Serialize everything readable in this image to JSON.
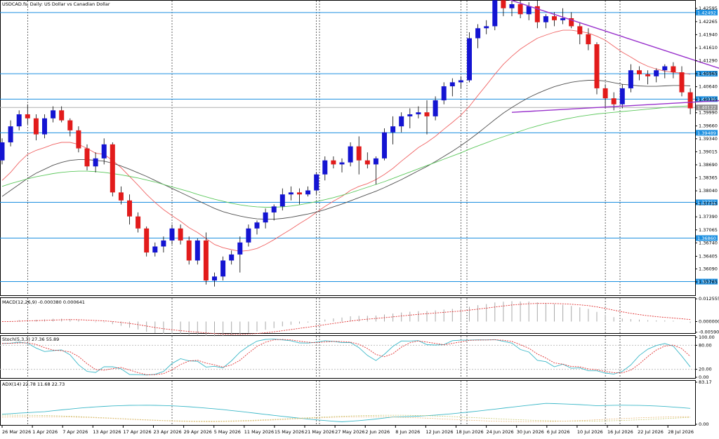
{
  "window": {
    "title": "USDCAD.fs, Daily:  US Dollar vs Canadian Dollar"
  },
  "colors": {
    "bull": "#1414d2",
    "bear": "#e21b1b",
    "level": "#1c8fe0",
    "trend": "#9932cc",
    "ma_fast": "#f06464",
    "ma_mid": "#505050",
    "ma_slow": "#5cc85c",
    "macd_hist": "#a9a9a9",
    "macd_signal": "#e03030",
    "stoch_main": "#3cb8c8",
    "stoch_signal": "#e03030",
    "adx_main": "#3cb8c8",
    "adx_plus": "#c8c870",
    "adx_minus": "#e8b87a",
    "grid": "#000000"
  },
  "chart_data": [
    {
      "type": "candlestick",
      "title": "USDCAD.fs, Daily:  US Dollar vs Canadian Dollar",
      "ylim": [
        1.3545,
        1.4277
      ],
      "price_ticks": [
        "1.42595",
        "1.42265",
        "1.41940",
        "1.41610",
        "1.41290",
        "1.40965",
        "1.40640",
        "1.40315",
        "1.39990",
        "1.39660",
        "1.39340",
        "1.39015",
        "1.38690",
        "1.38365",
        "1.38040",
        "1.37715",
        "1.37390",
        "1.37065",
        "1.36740",
        "1.36405",
        "1.36090",
        "1.35765"
      ],
      "x_labels": [
        "26 Mar 2026",
        "1 Apr 2026",
        "7 Apr 2026",
        "13 Apr 2026",
        "17 Apr 2026",
        "23 Apr 2026",
        "29 Apr 2026",
        "5 May 2026",
        "11 May 2026",
        "15 May 2026",
        "21 May 2026",
        "27 May 2026",
        "2 Jun 2026",
        "8 Jun 2026",
        "12 Jun 2026",
        "18 Jun 2026",
        "24 Jun 2026",
        "30 Jun 2026",
        "6 Jul 2026",
        "10 Jul 2026",
        "16 Jul 2026",
        "22 Jul 2026",
        "28 Jul 2026"
      ],
      "levels": [
        {
          "price": 1.42492,
          "label": "1.42492"
        },
        {
          "price": 1.40965,
          "label": "1.40965"
        },
        {
          "price": 1.4033,
          "label": "1.40330"
        },
        {
          "price": 1.39489,
          "label": "1.39489"
        },
        {
          "price": 1.37752,
          "label": "1.37752"
        },
        {
          "price": 1.3686,
          "label": "1.36860"
        },
        {
          "price": 1.35773,
          "label": "1.35773"
        }
      ],
      "current_price": {
        "price": 1.40122,
        "label": "1.40122"
      },
      "candles": [
        [
          1.388,
          1.3935,
          1.387,
          1.3925
        ],
        [
          1.3925,
          1.398,
          1.3915,
          1.3965
        ],
        [
          1.3965,
          1.4005,
          1.3955,
          1.3995
        ],
        [
          1.3995,
          1.402,
          1.397,
          1.3985
        ],
        [
          1.3985,
          1.3995,
          1.393,
          1.3945
        ],
        [
          1.3945,
          1.3995,
          1.3935,
          1.3985
        ],
        [
          1.3985,
          1.4015,
          1.3975,
          1.4005
        ],
        [
          1.4005,
          1.4015,
          1.3975,
          1.398
        ],
        [
          1.398,
          1.3985,
          1.394,
          1.3955
        ],
        [
          1.3955,
          1.3965,
          1.39,
          1.391
        ],
        [
          1.391,
          1.392,
          1.3855,
          1.3865
        ],
        [
          1.3865,
          1.39,
          1.385,
          1.3885
        ],
        [
          1.3885,
          1.3935,
          1.387,
          1.392
        ],
        [
          1.392,
          1.3925,
          1.379,
          1.38
        ],
        [
          1.38,
          1.3815,
          1.377,
          1.378
        ],
        [
          1.378,
          1.3795,
          1.372,
          1.374
        ],
        [
          1.374,
          1.375,
          1.37,
          1.371
        ],
        [
          1.371,
          1.3715,
          1.364,
          1.365
        ],
        [
          1.365,
          1.3675,
          1.364,
          1.3665
        ],
        [
          1.3665,
          1.369,
          1.365,
          1.368
        ],
        [
          1.368,
          1.372,
          1.367,
          1.371
        ],
        [
          1.371,
          1.372,
          1.367,
          1.368
        ],
        [
          1.368,
          1.369,
          1.362,
          1.363
        ],
        [
          1.363,
          1.3685,
          1.362,
          1.368
        ],
        [
          1.368,
          1.37,
          1.357,
          1.358
        ],
        [
          1.358,
          1.36,
          1.3565,
          1.359
        ],
        [
          1.359,
          1.364,
          1.358,
          1.363
        ],
        [
          1.363,
          1.3655,
          1.362,
          1.3645
        ],
        [
          1.3645,
          1.369,
          1.36,
          1.3675
        ],
        [
          1.3675,
          1.372,
          1.3665,
          1.371
        ],
        [
          1.371,
          1.373,
          1.3695,
          1.3725
        ],
        [
          1.3725,
          1.376,
          1.371,
          1.375
        ],
        [
          1.375,
          1.377,
          1.373,
          1.3765
        ],
        [
          1.3765,
          1.381,
          1.3755,
          1.3795
        ],
        [
          1.3795,
          1.3815,
          1.378,
          1.38
        ],
        [
          1.38,
          1.381,
          1.377,
          1.3795
        ],
        [
          1.3795,
          1.3815,
          1.379,
          1.3805
        ],
        [
          1.3805,
          1.385,
          1.3795,
          1.3845
        ],
        [
          1.3845,
          1.389,
          1.383,
          1.388
        ],
        [
          1.388,
          1.389,
          1.386,
          1.387
        ],
        [
          1.387,
          1.3885,
          1.385,
          1.3875
        ],
        [
          1.3875,
          1.3925,
          1.3865,
          1.3915
        ],
        [
          1.3915,
          1.394,
          1.3845,
          1.388
        ],
        [
          1.388,
          1.39,
          1.386,
          1.387
        ],
        [
          1.387,
          1.389,
          1.382,
          1.3885
        ],
        [
          1.3885,
          1.396,
          1.388,
          1.395
        ],
        [
          1.395,
          1.399,
          1.392,
          1.3965
        ],
        [
          1.3965,
          1.4,
          1.395,
          1.399
        ],
        [
          1.399,
          1.401,
          1.396,
          1.3995
        ],
        [
          1.3995,
          1.4015,
          1.3985,
          1.4
        ],
        [
          1.4,
          1.403,
          1.3945,
          1.399
        ],
        [
          1.399,
          1.404,
          1.398,
          1.403
        ],
        [
          1.403,
          1.4075,
          1.402,
          1.4065
        ],
        [
          1.4065,
          1.4085,
          1.404,
          1.4075
        ],
        [
          1.4075,
          1.409,
          1.406,
          1.408
        ],
        [
          1.408,
          1.42,
          1.4075,
          1.4185
        ],
        [
          1.4185,
          1.422,
          1.416,
          1.421
        ],
        [
          1.421,
          1.423,
          1.4195,
          1.4215
        ],
        [
          1.4215,
          1.429,
          1.4205,
          1.428
        ],
        [
          1.428,
          1.43,
          1.424,
          1.426
        ],
        [
          1.426,
          1.4285,
          1.424,
          1.427
        ],
        [
          1.427,
          1.429,
          1.4235,
          1.4245
        ],
        [
          1.4245,
          1.4275,
          1.423,
          1.4265
        ],
        [
          1.4265,
          1.428,
          1.421,
          1.4225
        ],
        [
          1.4225,
          1.4245,
          1.421,
          1.424
        ],
        [
          1.424,
          1.425,
          1.4215,
          1.423
        ],
        [
          1.423,
          1.426,
          1.422,
          1.4235
        ],
        [
          1.4235,
          1.425,
          1.421,
          1.4215
        ],
        [
          1.4215,
          1.4225,
          1.417,
          1.4195
        ],
        [
          1.4195,
          1.421,
          1.4155,
          1.417
        ],
        [
          1.417,
          1.4175,
          1.4045,
          1.406
        ],
        [
          1.406,
          1.407,
          1.401,
          1.4035
        ],
        [
          1.4035,
          1.405,
          1.4005,
          1.402
        ],
        [
          1.402,
          1.407,
          1.401,
          1.406
        ],
        [
          1.406,
          1.412,
          1.405,
          1.4105
        ],
        [
          1.4105,
          1.4115,
          1.408,
          1.4095
        ],
        [
          1.4095,
          1.4105,
          1.407,
          1.409
        ],
        [
          1.409,
          1.411,
          1.4075,
          1.4105
        ],
        [
          1.4105,
          1.412,
          1.4085,
          1.4115
        ],
        [
          1.4115,
          1.4125,
          1.4085,
          1.41
        ],
        [
          1.41,
          1.4115,
          1.404,
          1.405
        ],
        [
          1.405,
          1.406,
          1.3995,
          1.401
        ]
      ],
      "ma_fast": [
        1.383,
        1.385,
        1.3875,
        1.3895,
        1.3905,
        1.3912,
        1.392,
        1.3925,
        1.3925,
        1.392,
        1.391,
        1.3898,
        1.3895,
        1.388,
        1.3862,
        1.384,
        1.3818,
        1.3795,
        1.3775,
        1.3757,
        1.3742,
        1.3728,
        1.3712,
        1.37,
        1.3685,
        1.367,
        1.3662,
        1.3657,
        1.3653,
        1.3655,
        1.366,
        1.367,
        1.3682,
        1.3695,
        1.3708,
        1.3722,
        1.3735,
        1.375,
        1.3765,
        1.3778,
        1.379,
        1.3805,
        1.3815,
        1.3822,
        1.3832,
        1.3845,
        1.386,
        1.3878,
        1.3895,
        1.3912,
        1.3925,
        1.394,
        1.3958,
        1.3975,
        1.3993,
        1.4015,
        1.4042,
        1.4068,
        1.4095,
        1.412,
        1.414,
        1.4158,
        1.4172,
        1.4185,
        1.4193,
        1.42,
        1.4205,
        1.4205,
        1.4202,
        1.4198,
        1.419,
        1.418,
        1.4165,
        1.415,
        1.4138,
        1.4125,
        1.4115,
        1.4108,
        1.4103,
        1.41,
        1.4098,
        1.4095
      ],
      "ma_mid": [
        1.379,
        1.3805,
        1.382,
        1.3835,
        1.3848,
        1.3858,
        1.3868,
        1.3875,
        1.388,
        1.3882,
        1.3882,
        1.388,
        1.3878,
        1.3873,
        1.3866,
        1.3858,
        1.3849,
        1.384,
        1.383,
        1.382,
        1.381,
        1.38,
        1.379,
        1.378,
        1.377,
        1.376,
        1.3752,
        1.3746,
        1.3741,
        1.3737,
        1.3734,
        1.3733,
        1.3733,
        1.3735,
        1.3738,
        1.3742,
        1.3746,
        1.3751,
        1.3757,
        1.3764,
        1.3771,
        1.3779,
        1.3787,
        1.3795,
        1.3803,
        1.3812,
        1.3822,
        1.3832,
        1.3843,
        1.3854,
        1.3865,
        1.3877,
        1.389,
        1.3903,
        1.3917,
        1.3932,
        1.3948,
        1.3965,
        1.3982,
        1.3998,
        1.4012,
        1.4025,
        1.4037,
        1.4047,
        1.4056,
        1.4064,
        1.407,
        1.4075,
        1.4078,
        1.408,
        1.408,
        1.4078,
        1.4074,
        1.407,
        1.4068,
        1.4066,
        1.4065,
        1.4065,
        1.4066,
        1.4067,
        1.4067,
        1.4066
      ],
      "ma_slow": [
        1.3815,
        1.3822,
        1.3828,
        1.3834,
        1.3839,
        1.3843,
        1.3847,
        1.385,
        1.3852,
        1.3853,
        1.3853,
        1.3852,
        1.385,
        1.3847,
        1.3844,
        1.384,
        1.3836,
        1.3831,
        1.3826,
        1.382,
        1.3814,
        1.3808,
        1.3802,
        1.3795,
        1.3789,
        1.3783,
        1.3778,
        1.3773,
        1.3769,
        1.3766,
        1.3764,
        1.3763,
        1.3763,
        1.3764,
        1.3766,
        1.3769,
        1.3773,
        1.3777,
        1.3782,
        1.3787,
        1.3793,
        1.3799,
        1.3806,
        1.3813,
        1.382,
        1.3827,
        1.3835,
        1.3843,
        1.3851,
        1.3859,
        1.3867,
        1.3875,
        1.3883,
        1.3891,
        1.3899,
        1.3908,
        1.3916,
        1.3924,
        1.3932,
        1.3939,
        1.3946,
        1.3953,
        1.396,
        1.3966,
        1.3972,
        1.3977,
        1.3982,
        1.3986,
        1.399,
        1.3993,
        1.3996,
        1.3998,
        1.4,
        1.4002,
        1.4004,
        1.4006,
        1.4008,
        1.401,
        1.4012,
        1.4014,
        1.4015,
        1.4016
      ],
      "trendlines": [
        {
          "from": [
            57,
            1.43
          ],
          "to": [
            81,
            1.4105
          ]
        },
        {
          "from": [
            60,
            1.4
          ],
          "to": [
            81,
            1.403
          ]
        }
      ]
    },
    {
      "type": "bar",
      "title": "MACD(12,26,9) -0.000380 0.000641",
      "ylim": [
        -0.006,
        0.0126
      ],
      "ticks": [
        "0.012555",
        "0.000000",
        "-0.005900"
      ],
      "signal_smooth": true
    },
    {
      "type": "line",
      "title": "Stoch(5,3,3) 27.36 55.89",
      "ylim": [
        0,
        100
      ],
      "ticks": [
        "100.00",
        "80.00",
        "20.00",
        "0.00"
      ]
    },
    {
      "type": "line",
      "title": "ADX(14) 22.78 11.68 22.73",
      "ylim": [
        0,
        83.17
      ],
      "ticks": [
        "83.17",
        "0.00"
      ]
    }
  ]
}
